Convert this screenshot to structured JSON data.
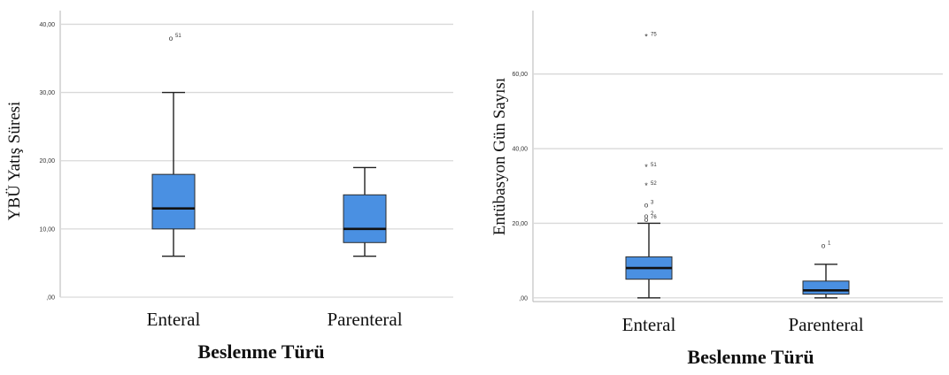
{
  "chart_data": [
    {
      "type": "boxplot",
      "xlabel": "Beslenme Türü",
      "ylabel": "YBÜ Yatış Süresi",
      "ylim": [
        0,
        42
      ],
      "yticks": [
        {
          "value": 0,
          "label": ",00"
        },
        {
          "value": 10,
          "label": "10,00"
        },
        {
          "value": 20,
          "label": "20,00"
        },
        {
          "value": 30,
          "label": "30,00"
        },
        {
          "value": 40,
          "label": "40,00"
        }
      ],
      "grid": true,
      "box_color": "#4a90e2",
      "categories": [
        "Enteral",
        "Parenteral"
      ],
      "boxes": [
        {
          "category": "Enteral",
          "whisker_low": 6,
          "q1": 10,
          "median": 13,
          "q3": 18,
          "whisker_high": 30,
          "outliers": [
            {
              "value": 38,
              "label": "51",
              "marker": "o"
            }
          ]
        },
        {
          "category": "Parenteral",
          "whisker_low": 6,
          "q1": 8,
          "median": 10,
          "q3": 15,
          "whisker_high": 19,
          "outliers": []
        }
      ]
    },
    {
      "type": "boxplot",
      "xlabel": "Beslenme Türü",
      "ylabel": "Entübasyon Gün Sayısı",
      "ylim": [
        -1,
        77
      ],
      "yticks": [
        {
          "value": 0,
          "label": ",00"
        },
        {
          "value": 20,
          "label": "20,00"
        },
        {
          "value": 40,
          "label": "40,00"
        },
        {
          "value": 60,
          "label": "60,00"
        }
      ],
      "grid": true,
      "box_color": "#4a90e2",
      "categories": [
        "Enteral",
        "Parenteral"
      ],
      "boxes": [
        {
          "category": "Enteral",
          "whisker_low": 0,
          "q1": 5,
          "median": 8,
          "q3": 11,
          "whisker_high": 20,
          "outliers": [
            {
              "value": 70,
              "label": "75",
              "marker": "*"
            },
            {
              "value": 35,
              "label": "51",
              "marker": "*"
            },
            {
              "value": 30,
              "label": "52",
              "marker": "*"
            },
            {
              "value": 25,
              "label": "3",
              "marker": "o"
            },
            {
              "value": 22,
              "label": "2",
              "marker": "o"
            },
            {
              "value": 21,
              "label": "76",
              "marker": "o"
            }
          ]
        },
        {
          "category": "Parenteral",
          "whisker_low": 0,
          "q1": 1,
          "median": 2,
          "q3": 4.5,
          "whisker_high": 9,
          "outliers": [
            {
              "value": 14,
              "label": "1",
              "marker": "o"
            }
          ]
        }
      ]
    }
  ]
}
